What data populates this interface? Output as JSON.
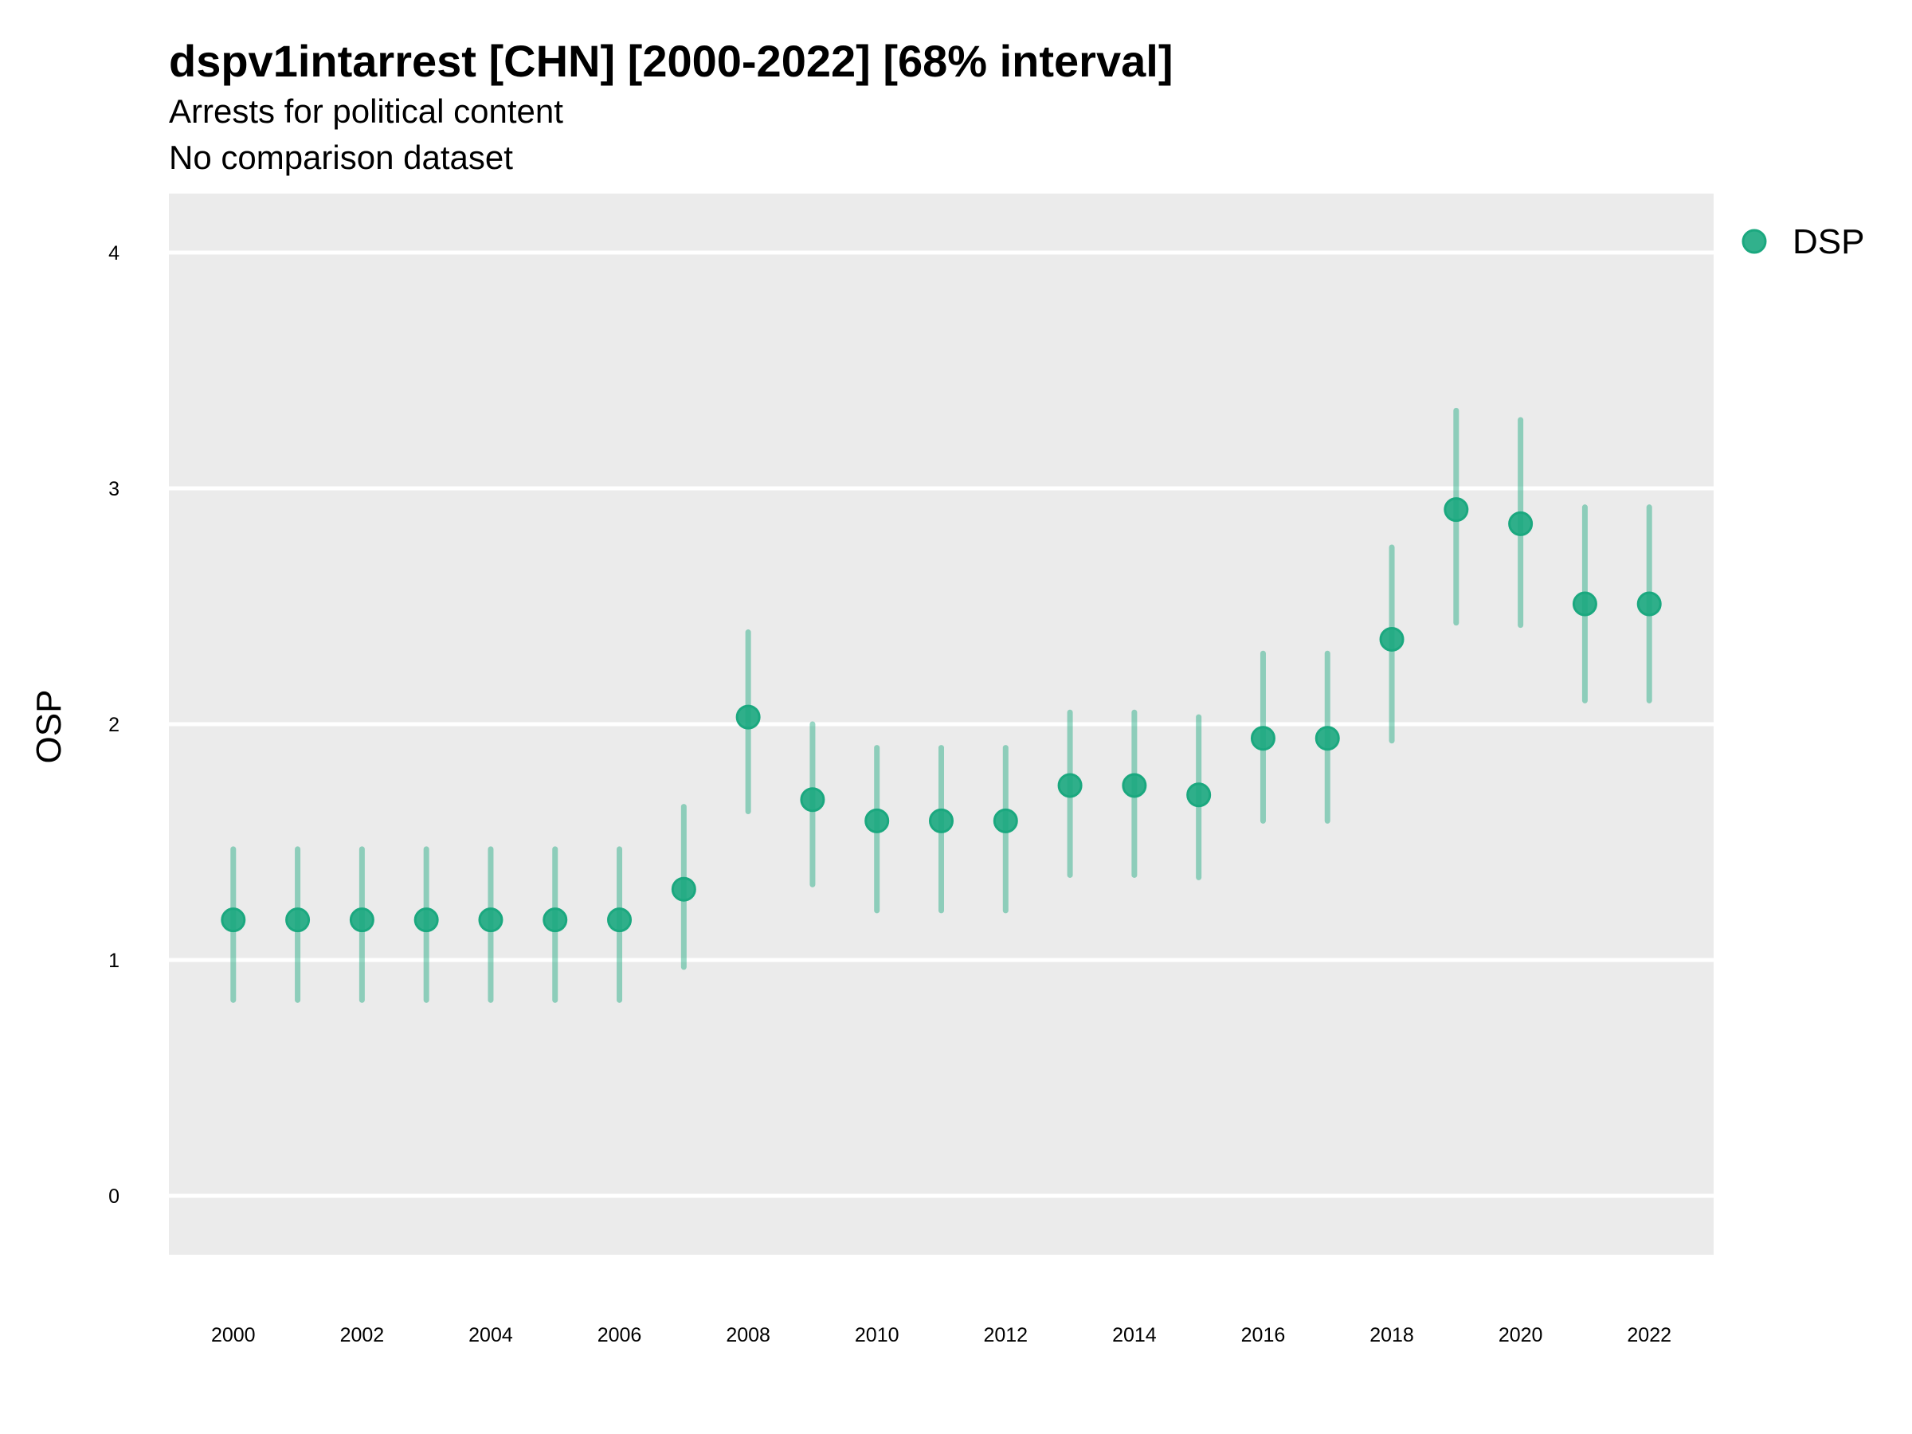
{
  "chart_data": {
    "type": "scatter",
    "title": "dspv1intarrest [CHN] [2000-2022] [68% interval]",
    "subtitle": "Arrests for political content",
    "caption_line2": "No comparison dataset",
    "xlabel": "",
    "ylabel": "OSP",
    "ylim": [
      -0.25,
      4.25
    ],
    "xlim": [
      1999,
      2023
    ],
    "grid": true,
    "legend_position": "right-top",
    "yticks": [
      "0",
      "1",
      "2",
      "3",
      "4"
    ],
    "xticks": [
      "2000",
      "2002",
      "2004",
      "2006",
      "2008",
      "2010",
      "2012",
      "2014",
      "2016",
      "2018",
      "2020",
      "2022"
    ],
    "series": [
      {
        "name": "DSP",
        "color": "#1ba87f",
        "x": [
          2000,
          2001,
          2002,
          2003,
          2004,
          2005,
          2006,
          2007,
          2008,
          2009,
          2010,
          2011,
          2012,
          2013,
          2014,
          2015,
          2016,
          2017,
          2018,
          2019,
          2020,
          2021,
          2022
        ],
        "y": [
          1.17,
          1.17,
          1.17,
          1.17,
          1.17,
          1.17,
          1.17,
          1.3,
          2.03,
          1.68,
          1.59,
          1.59,
          1.59,
          1.74,
          1.74,
          1.7,
          1.94,
          1.94,
          2.36,
          2.91,
          2.85,
          2.51,
          2.51
        ],
        "lower": [
          0.83,
          0.83,
          0.83,
          0.83,
          0.83,
          0.83,
          0.83,
          0.97,
          1.63,
          1.32,
          1.21,
          1.21,
          1.21,
          1.36,
          1.36,
          1.35,
          1.59,
          1.59,
          1.93,
          2.43,
          2.42,
          2.1,
          2.1
        ],
        "upper": [
          1.47,
          1.47,
          1.47,
          1.47,
          1.47,
          1.47,
          1.47,
          1.65,
          2.39,
          2.0,
          1.9,
          1.9,
          1.9,
          2.05,
          2.05,
          2.03,
          2.3,
          2.3,
          2.75,
          3.33,
          3.29,
          2.92,
          2.92
        ]
      }
    ]
  }
}
